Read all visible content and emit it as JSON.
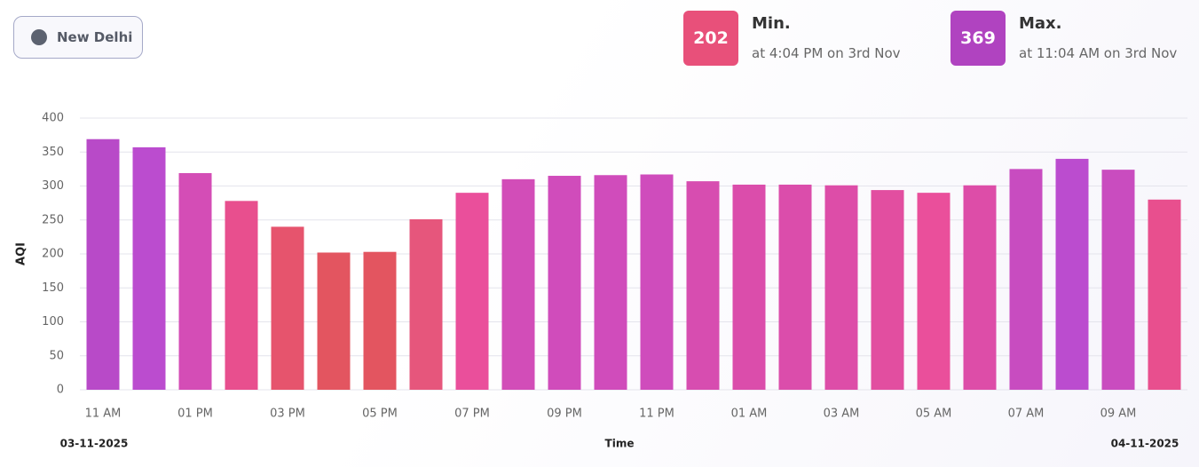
{
  "location": "New Delhi",
  "stats": {
    "min": {
      "value": "202",
      "label": "Min.",
      "detail": "at 4:04 PM on 3rd Nov",
      "color": "#e8507a"
    },
    "max": {
      "value": "369",
      "label": "Max.",
      "detail": "at 11:04 AM on 3rd Nov",
      "color": "#b043c0"
    }
  },
  "chart_data": {
    "type": "bar",
    "ylabel": "AQI",
    "xlabel": "Time",
    "start_date": "03-11-2025",
    "end_date": "04-11-2025",
    "categories": [
      "11 AM",
      null,
      "01 PM",
      null,
      "03 PM",
      null,
      "05 PM",
      null,
      "07 PM",
      null,
      "09 PM",
      null,
      "11 PM",
      null,
      "01 AM",
      null,
      "03 AM",
      null,
      "05 AM",
      null,
      "07 AM",
      null,
      "09 AM",
      null
    ],
    "values": [
      369,
      357,
      319,
      278,
      240,
      202,
      203,
      251,
      290,
      310,
      315,
      316,
      317,
      307,
      302,
      302,
      301,
      294,
      290,
      301,
      325,
      340,
      324,
      280
    ],
    "colors": [
      "#b84ac8",
      "#bb4ccf",
      "#d44db6",
      "#e84f8e",
      "#e6546d",
      "#e35560",
      "#e35560",
      "#e6567c",
      "#ea4f9b",
      "#d24db8",
      "#d04cbb",
      "#d04cbb",
      "#cf4cbc",
      "#d74db0",
      "#db4dab",
      "#db4dab",
      "#dd4da8",
      "#e24ea0",
      "#ea4f9b",
      "#dd4da8",
      "#c84cc0",
      "#bb4ccf",
      "#c94cbf",
      "#e84f8e"
    ],
    "ylim": [
      0,
      400
    ],
    "yticks": [
      0,
      50,
      100,
      150,
      200,
      250,
      300,
      350,
      400
    ],
    "grid": true
  }
}
